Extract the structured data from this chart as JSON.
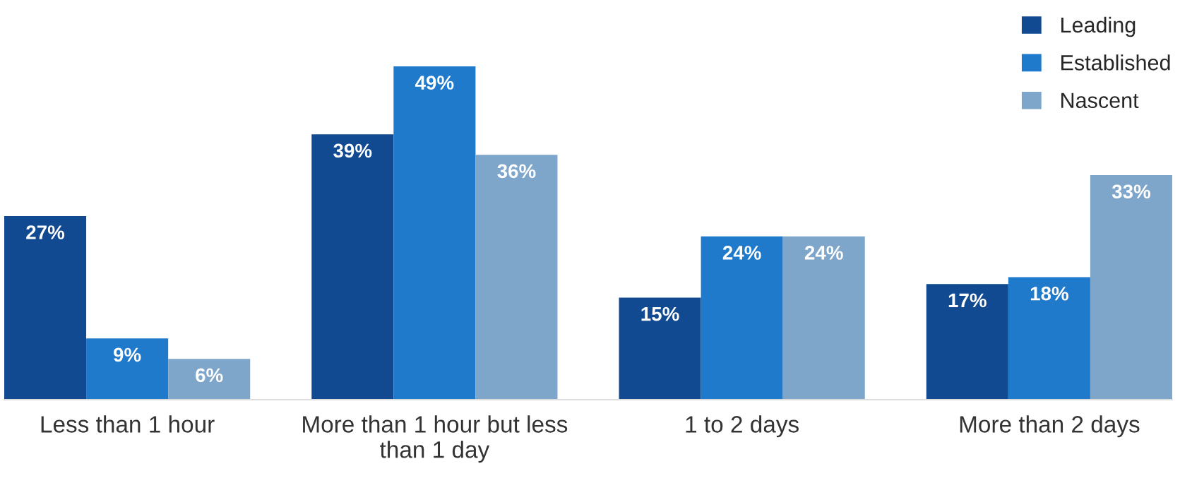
{
  "chart_data": {
    "type": "bar",
    "categories": [
      "Less than 1 hour",
      "More than 1 hour but less than 1 day",
      "1 to 2 days",
      "More than 2 days"
    ],
    "series": [
      {
        "name": "Leading",
        "color": "#114a91",
        "values": [
          27,
          39,
          15,
          17
        ],
        "value_labels": [
          "27%",
          "39%",
          "15%",
          "17%"
        ]
      },
      {
        "name": "Established",
        "color": "#1f7acb",
        "values": [
          9,
          49,
          24,
          18
        ],
        "value_labels": [
          "9%",
          "49%",
          "24%",
          "18%"
        ]
      },
      {
        "name": "Nascent",
        "color": "#7ea6cb",
        "values": [
          6,
          36,
          24,
          33
        ],
        "value_labels": [
          "6%",
          "36%",
          "24%",
          "33%"
        ]
      }
    ],
    "legend": "top right",
    "grid": false
  }
}
